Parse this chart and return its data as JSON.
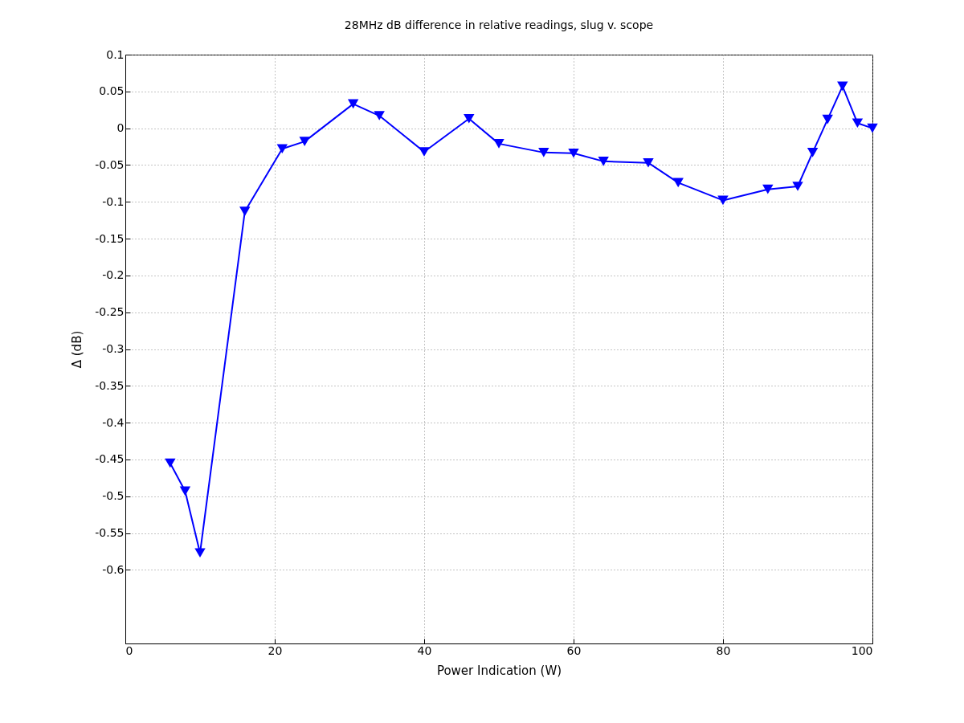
{
  "chart_data": {
    "type": "line",
    "title": "28MHz dB difference in relative readings, slug v. scope",
    "xlabel": "Power Indication (W)",
    "ylabel": "Δ (dB)",
    "x": [
      6,
      8,
      10,
      16,
      21,
      24,
      30.5,
      34,
      40,
      46,
      50,
      56,
      60,
      64,
      70,
      74,
      80,
      86,
      90,
      92,
      94,
      96,
      98,
      100
    ],
    "series": [
      {
        "color": "#0000ff",
        "values": [
          -0.455,
          -0.493,
          -0.577,
          -0.113,
          -0.028,
          -0.018,
          0.033,
          0.017,
          -0.032,
          0.013,
          -0.021,
          -0.033,
          -0.034,
          -0.045,
          -0.047,
          -0.074,
          -0.098,
          -0.083,
          -0.079,
          -0.033,
          0.012,
          0.057,
          0.007,
          0
        ]
      }
    ],
    "xlim": [
      0,
      100
    ],
    "xticks": [
      0,
      20,
      40,
      60,
      80,
      100
    ],
    "ylim": [
      -0.7,
      0.1
    ],
    "yticks": [
      0.1,
      0.05,
      0,
      -0.05,
      -0.1,
      -0.15,
      -0.2,
      -0.25,
      -0.3,
      -0.35,
      -0.4,
      -0.45,
      -0.5,
      -0.55,
      -0.6
    ],
    "grid": true,
    "marker": "triangle",
    "line_style": "solid"
  }
}
